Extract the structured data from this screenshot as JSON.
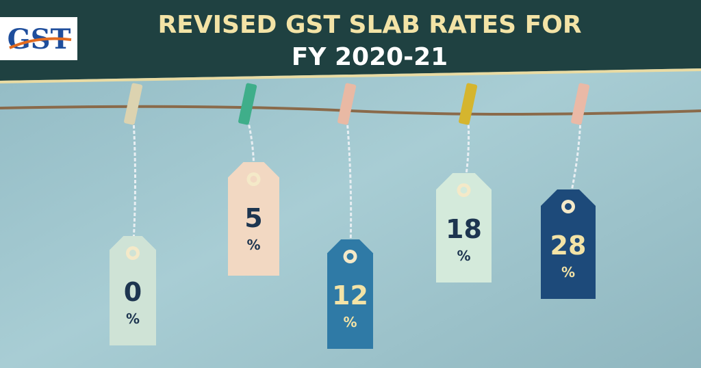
{
  "header": {
    "logo": "GST",
    "title_lines": [
      "REVISED GST SLAB RATES FOR",
      "FY 2020-21"
    ]
  },
  "tags": [
    {
      "rate": "0",
      "unit": "%"
    },
    {
      "rate": "5",
      "unit": "%"
    },
    {
      "rate": "12",
      "unit": "%"
    },
    {
      "rate": "18",
      "unit": "%"
    },
    {
      "rate": "28",
      "unit": "%"
    }
  ]
}
